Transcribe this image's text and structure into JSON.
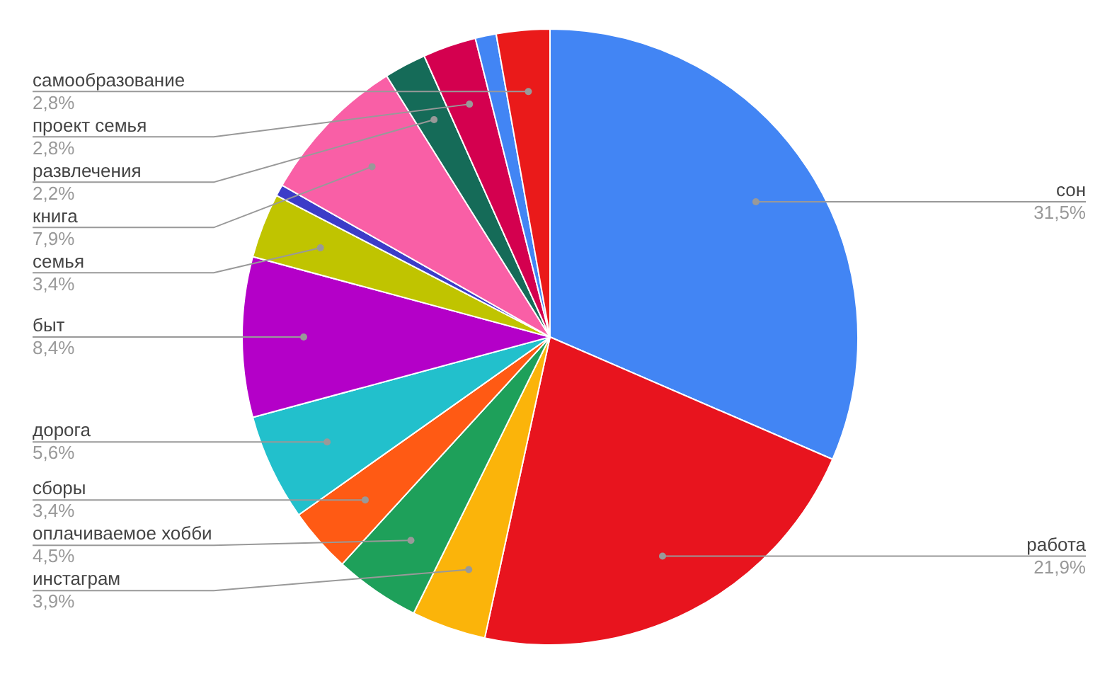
{
  "chart_data": {
    "type": "pie",
    "categories": [
      "сон",
      "работа",
      "инстаграм",
      "оплачиваемое хобби",
      "сборы",
      "дорога",
      "быт",
      "семья",
      null,
      "книга",
      "развлечения",
      "проект семья",
      null,
      "самообразование"
    ],
    "values": [
      31.5,
      21.9,
      3.9,
      4.5,
      3.4,
      5.6,
      8.4,
      3.4,
      0.6,
      7.9,
      2.2,
      2.8,
      1.1,
      2.8
    ],
    "colors": [
      "#4285f4",
      "#e8141e",
      "#fbb40a",
      "#1ea05a",
      "#ff5a14",
      "#22c0cc",
      "#b400c8",
      "#c0c400",
      "#3c3cc8",
      "#f95fa6",
      "#156b58",
      "#d4004f",
      "#4285f4",
      "#ea1a1a"
    ],
    "value_labels": [
      "31,5%",
      "21,9%",
      "3,9%",
      "4,5%",
      "3,4%",
      "5,6%",
      "8,4%",
      "3,4%",
      null,
      "7,9%",
      "2,2%",
      "2,8%",
      null,
      "2,8%"
    ]
  }
}
